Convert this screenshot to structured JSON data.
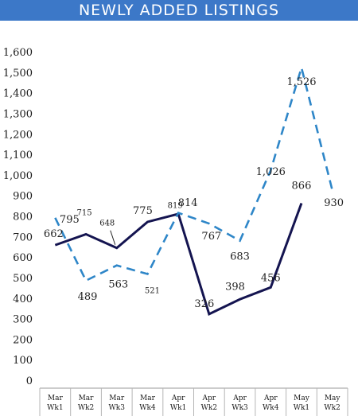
{
  "chart_data": {
    "type": "line",
    "title": "NEWLY ADDED LISTINGS",
    "categories": [
      [
        "Mar",
        "Wk1"
      ],
      [
        "Mar",
        "Wk2"
      ],
      [
        "Mar",
        "Wk3"
      ],
      [
        "Mar",
        "Wk4"
      ],
      [
        "Apr",
        "Wk1"
      ],
      [
        "Apr",
        "Wk2"
      ],
      [
        "Apr",
        "Wk3"
      ],
      [
        "Apr",
        "Wk4"
      ],
      [
        "May",
        "Wk1"
      ],
      [
        "May",
        "Wk2"
      ]
    ],
    "ylim": [
      0,
      1600
    ],
    "yticks": [
      "0",
      "100",
      "200",
      "300",
      "400",
      "500",
      "600",
      "700",
      "800",
      "900",
      "1,000",
      "1,100",
      "1,200",
      "1,300",
      "1,400",
      "1,500",
      "1,600"
    ],
    "series": [
      {
        "style": "solid",
        "color": "#141450",
        "values": [
          662,
          715,
          648,
          775,
          814,
          326,
          398,
          456,
          866,
          null
        ],
        "labels": [
          "662",
          "715",
          "648",
          "775",
          "814",
          "326",
          "398",
          "456",
          "866",
          ""
        ]
      },
      {
        "style": "dashed",
        "color": "#2e86c8",
        "values": [
          795,
          489,
          563,
          521,
          819,
          767,
          683,
          1026,
          1526,
          930
        ],
        "labels": [
          "795",
          "489",
          "563",
          "521",
          "819",
          "767",
          "683",
          "1,026",
          "1,526",
          "930"
        ]
      }
    ]
  }
}
